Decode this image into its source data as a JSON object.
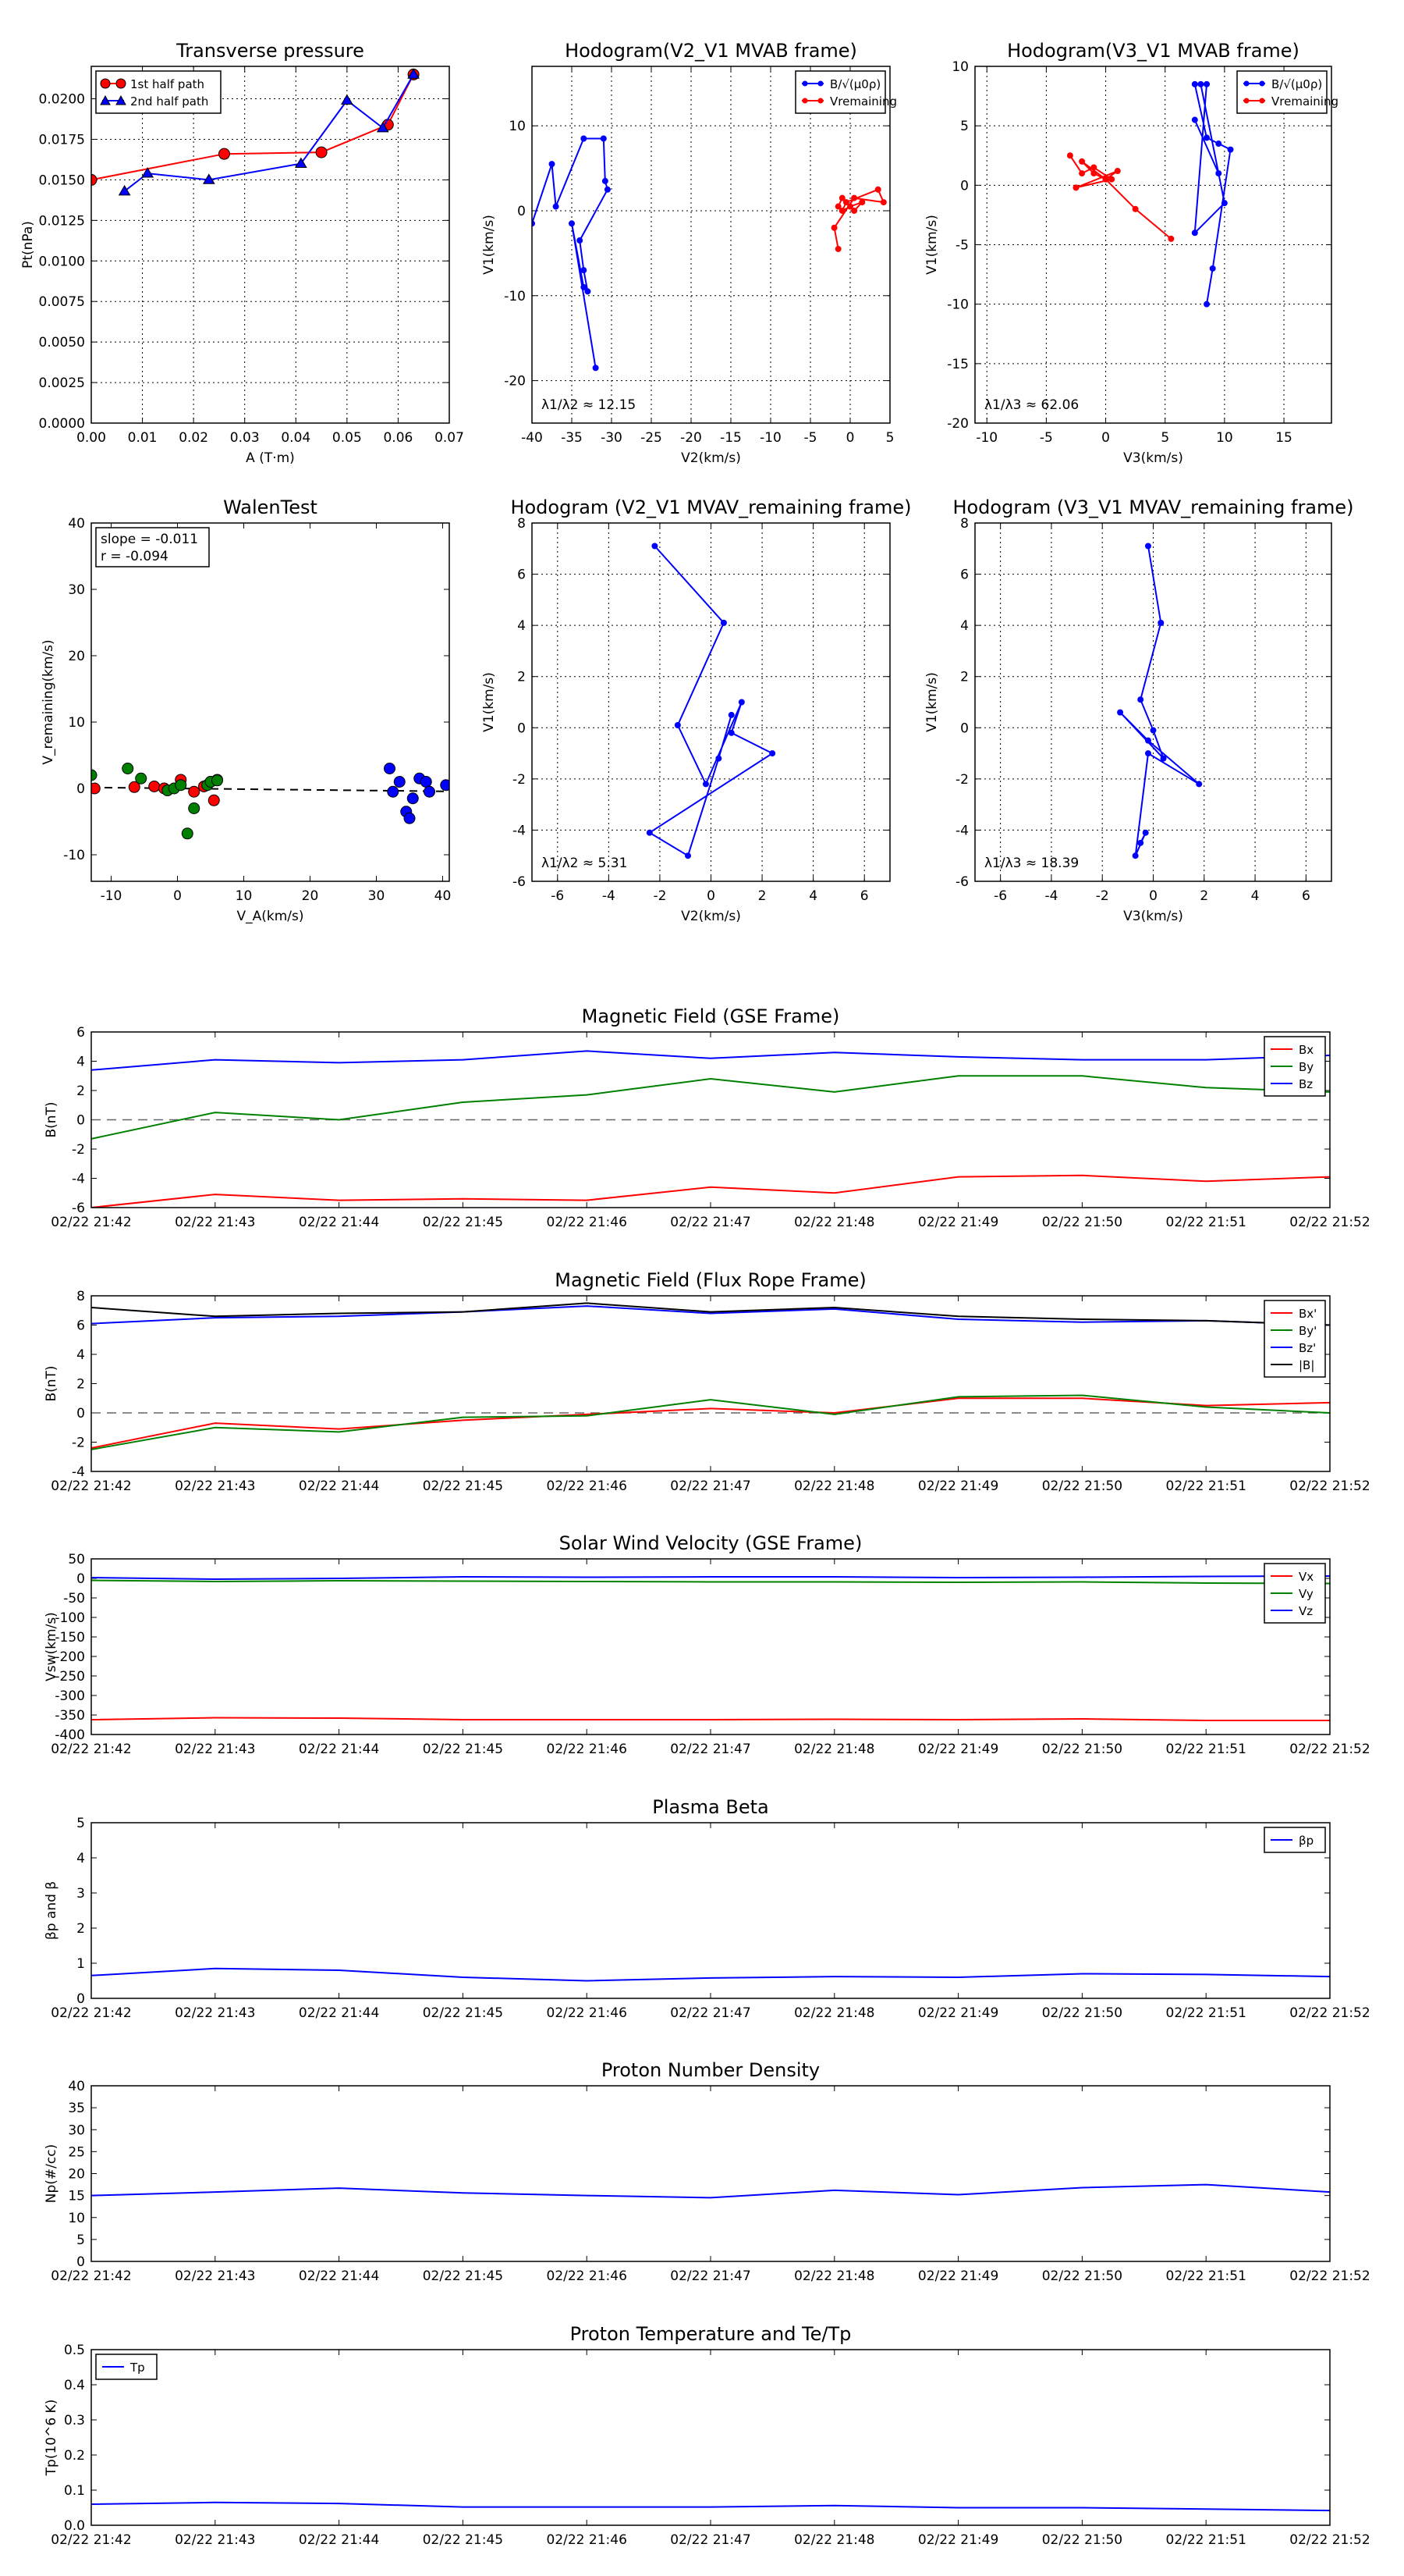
{
  "times": [
    "02/22 21:42",
    "02/22 21:43",
    "02/22 21:44",
    "02/22 21:45",
    "02/22 21:46",
    "02/22 21:47",
    "02/22 21:48",
    "02/22 21:49",
    "02/22 21:50",
    "02/22 21:51",
    "02/22 21:52"
  ],
  "chart_data": [
    {
      "id": "transverse-pressure",
      "type": "line",
      "title": "Transverse pressure",
      "xlabel": "A (T·m)",
      "ylabel": "Pt(nPa)",
      "xlim": [
        0,
        0.07
      ],
      "ylim": [
        0,
        0.022
      ],
      "xticks": [
        "0.00",
        "0.01",
        "0.02",
        "0.03",
        "0.04",
        "0.05",
        "0.06",
        "0.07"
      ],
      "yticks": [
        "0.0000",
        "0.0025",
        "0.0050",
        "0.0075",
        "0.0100",
        "0.0125",
        "0.0150",
        "0.0175",
        "0.0200"
      ],
      "legend": "top-left",
      "grid": true,
      "series": [
        {
          "name": "1st half path",
          "color": "#ff0000",
          "marker": "circle",
          "x": [
            0.0,
            0.026,
            0.045,
            0.058,
            0.063
          ],
          "y": [
            0.015,
            0.0166,
            0.0167,
            0.0184,
            0.0215
          ]
        },
        {
          "name": "2nd half path",
          "color": "#0000ff",
          "marker": "triangle",
          "x": [
            0.0065,
            0.011,
            0.023,
            0.041,
            0.05,
            0.057,
            0.063
          ],
          "y": [
            0.0143,
            0.0154,
            0.015,
            0.016,
            0.0199,
            0.0182,
            0.0215
          ]
        }
      ]
    },
    {
      "id": "hodogram-v2v1-mvab",
      "type": "line",
      "title": "Hodogram(V2_V1 MVAB frame)",
      "xlabel": "V2(km/s)",
      "ylabel": "V1(km/s)",
      "xlim": [
        -40,
        5
      ],
      "ylim": [
        -25,
        17
      ],
      "xticks": [
        "-40",
        "-35",
        "-30",
        "-25",
        "-20",
        "-15",
        "-10",
        "-5",
        "0",
        "5"
      ],
      "yticks": [
        "-20",
        "-10",
        "0",
        "10"
      ],
      "annotation": "λ1/λ2 ≈ 12.15",
      "legend": "top-right",
      "grid": true,
      "series": [
        {
          "name": "B/√(μ0ρ)",
          "color": "#0000ff",
          "x": [
            -40,
            -37.5,
            -37,
            -33.5,
            -31,
            -30.8,
            -30.5,
            -34,
            -33.5,
            -33,
            -33.5,
            -35,
            -32
          ],
          "y": [
            -1.5,
            5.5,
            0.5,
            8.5,
            8.5,
            3.5,
            2.5,
            -3.5,
            -7,
            -9.5,
            -9,
            -1.5,
            -18.5
          ]
        },
        {
          "name": "Vremaining",
          "color": "#ff0000",
          "x": [
            -1.5,
            -1.0,
            0.5,
            1.5,
            0.0,
            -1.0,
            -0.5,
            3.5,
            4.2,
            0.5,
            -2.0,
            -1.5
          ],
          "y": [
            0.5,
            1.5,
            0.0,
            1.0,
            0.5,
            0.0,
            1.0,
            2.5,
            1.0,
            1.5,
            -2.0,
            -4.5
          ]
        }
      ]
    },
    {
      "id": "hodogram-v3v1-mvab",
      "type": "line",
      "title": "Hodogram(V3_V1 MVAB frame)",
      "xlabel": "V3(km/s)",
      "ylabel": "V1(km/s)",
      "xlim": [
        -11,
        19
      ],
      "ylim": [
        -20,
        10
      ],
      "xticks": [
        "-10",
        "-5",
        "0",
        "5",
        "10",
        "15"
      ],
      "yticks": [
        "-20",
        "-15",
        "-10",
        "-5",
        "0",
        "5",
        "10"
      ],
      "annotation": "λ1/λ3 ≈ 62.06",
      "legend": "top-right",
      "grid": true,
      "series": [
        {
          "name": "B/√(μ0ρ)",
          "color": "#0000ff",
          "x": [
            7.5,
            9.5,
            8.0,
            10.0,
            7.5,
            8.5,
            7.5,
            8.5,
            9.5,
            10.5,
            9.0,
            8.5
          ],
          "y": [
            5.5,
            1.0,
            8.5,
            -1.5,
            -4.0,
            8.5,
            8.5,
            4.0,
            3.5,
            3.0,
            -7.0,
            -10.0
          ]
        },
        {
          "name": "Vremaining",
          "color": "#ff0000",
          "x": [
            -3.0,
            -2.0,
            -1.0,
            0.5,
            -2.5,
            1.0,
            0.0,
            -1.0,
            -2.0,
            0.0,
            2.5,
            5.5
          ],
          "y": [
            2.5,
            1.0,
            1.5,
            0.5,
            -0.2,
            1.2,
            0.5,
            1.0,
            2.0,
            0.5,
            -2.0,
            -4.5
          ]
        }
      ]
    },
    {
      "id": "walen-test",
      "type": "scatter",
      "title": "WalenTest",
      "xlabel": "V_A(km/s)",
      "ylabel": "V_remaining(km/s)",
      "xlim": [
        -13,
        41
      ],
      "ylim": [
        -14,
        40
      ],
      "xticks": [
        "-10",
        "0",
        "10",
        "20",
        "30",
        "40"
      ],
      "yticks": [
        "-10",
        "0",
        "10",
        "20",
        "30",
        "40"
      ],
      "annotation_lines": [
        "slope = -0.011",
        "r = -0.094"
      ],
      "fit": {
        "x": [
          -13,
          41
        ],
        "y": [
          0.14,
          -0.45
        ]
      },
      "series": [
        {
          "color": "#ff0000",
          "x": [
            -12.5,
            -6.5,
            -3.5,
            -2,
            0.5,
            2.5,
            4,
            5,
            5.5,
            6
          ],
          "y": [
            0,
            0.2,
            0.3,
            0,
            1.3,
            -0.5,
            0.3,
            1,
            -1.8,
            1.3
          ]
        },
        {
          "color": "#008000",
          "x": [
            -13,
            -7.5,
            -5.5,
            -1.5,
            -0.5,
            0.5,
            1.5,
            2.5,
            4.5,
            5,
            6
          ],
          "y": [
            2,
            3,
            1.5,
            -0.3,
            0,
            0.5,
            -6.8,
            -3,
            0.5,
            1,
            1.2
          ]
        },
        {
          "color": "#0000ff",
          "x": [
            32,
            32.5,
            33.5,
            34.5,
            35,
            35.5,
            36.5,
            37.5,
            38,
            40.5
          ],
          "y": [
            3,
            -0.5,
            1,
            -3.5,
            -4.5,
            -1.5,
            1.5,
            1,
            -0.5,
            0.5
          ]
        }
      ]
    },
    {
      "id": "hodogram-v2v1-mvav",
      "type": "line",
      "title": "Hodogram (V2_V1 MVAV_remaining frame)",
      "xlabel": "V2(km/s)",
      "ylabel": "V1(km/s)",
      "xlim": [
        -7,
        7
      ],
      "ylim": [
        -6,
        8
      ],
      "xticks": [
        "-6",
        "-4",
        "-2",
        "0",
        "2",
        "4",
        "6"
      ],
      "yticks": [
        "-6",
        "-4",
        "-2",
        "0",
        "2",
        "4",
        "6",
        "8"
      ],
      "annotation": "λ1/λ2 ≈ 5.31",
      "grid": true,
      "series": [
        {
          "color": "#0000ff",
          "x": [
            -2.2,
            0.5,
            -1.3,
            -0.2,
            1.2,
            0.8,
            2.4,
            -2.4,
            -0.9,
            0.3,
            0.8
          ],
          "y": [
            7.1,
            4.1,
            0.1,
            -2.2,
            1.0,
            -0.2,
            -1.0,
            -4.1,
            -5.0,
            -1.2,
            0.5
          ]
        }
      ]
    },
    {
      "id": "hodogram-v3v1-mvav",
      "type": "line",
      "title": "Hodogram (V3_V1 MVAV_remaining frame)",
      "xlabel": "V3(km/s)",
      "ylabel": "V1(km/s)",
      "xlim": [
        -7,
        7
      ],
      "ylim": [
        -6,
        8
      ],
      "xticks": [
        "-6",
        "-4",
        "-2",
        "0",
        "2",
        "4",
        "6"
      ],
      "yticks": [
        "-6",
        "-4",
        "-2",
        "0",
        "2",
        "4",
        "6",
        "8"
      ],
      "annotation": "λ1/λ3 ≈ 18.39",
      "grid": true,
      "series": [
        {
          "color": "#0000ff",
          "x": [
            -0.2,
            0.3,
            -0.5,
            0.0,
            0.4,
            -1.3,
            -0.2,
            1.8,
            -0.2,
            -0.7,
            -0.3,
            -0.5
          ],
          "y": [
            7.1,
            4.1,
            1.1,
            -0.1,
            -1.2,
            0.6,
            -0.5,
            -2.2,
            -1.0,
            -5.0,
            -4.1,
            -4.5
          ]
        }
      ]
    },
    {
      "id": "magnetic-field-gse",
      "type": "line",
      "title": "Magnetic Field (GSE Frame)",
      "ylabel": "B(nT)",
      "ylim": [
        -6,
        6
      ],
      "yticks": [
        "-6",
        "-4",
        "-2",
        "0",
        "2",
        "4",
        "6"
      ],
      "zero_line": true,
      "legend": "top-right",
      "series": [
        {
          "name": "Bx",
          "color": "#ff0000",
          "y": [
            -6.0,
            -5.1,
            -5.5,
            -5.4,
            -5.5,
            -4.6,
            -5.0,
            -3.9,
            -3.8,
            -4.2,
            -3.9
          ]
        },
        {
          "name": "By",
          "color": "#008000",
          "y": [
            -1.3,
            0.5,
            0.0,
            1.2,
            1.7,
            2.8,
            1.9,
            3.0,
            3.0,
            2.2,
            1.9
          ]
        },
        {
          "name": "Bz",
          "color": "#0000ff",
          "y": [
            3.4,
            4.1,
            3.9,
            4.1,
            4.7,
            4.2,
            4.6,
            4.3,
            4.1,
            4.1,
            4.4
          ]
        }
      ]
    },
    {
      "id": "magnetic-field-flux-rope",
      "type": "line",
      "title": "Magnetic Field (Flux Rope Frame)",
      "ylabel": "B(nT)",
      "ylim": [
        -4,
        8
      ],
      "yticks": [
        "-4",
        "-2",
        "0",
        "2",
        "4",
        "6",
        "8"
      ],
      "zero_line": true,
      "legend": "top-right",
      "series": [
        {
          "name": "Bx'",
          "color": "#ff0000",
          "y": [
            -2.4,
            -0.7,
            -1.1,
            -0.5,
            -0.1,
            0.3,
            0.0,
            1.0,
            1.0,
            0.5,
            0.7
          ]
        },
        {
          "name": "By'",
          "color": "#008000",
          "y": [
            -2.5,
            -1.0,
            -1.3,
            -0.3,
            -0.2,
            0.9,
            -0.1,
            1.1,
            1.2,
            0.4,
            0.0
          ]
        },
        {
          "name": "Bz'",
          "color": "#0000ff",
          "y": [
            6.1,
            6.5,
            6.6,
            6.9,
            7.3,
            6.8,
            7.1,
            6.4,
            6.2,
            6.3,
            6.0
          ]
        },
        {
          "name": "|B|",
          "color": "#000000",
          "y": [
            7.2,
            6.6,
            6.8,
            6.9,
            7.5,
            6.9,
            7.2,
            6.6,
            6.4,
            6.3,
            6.0
          ]
        }
      ]
    },
    {
      "id": "solar-wind-velocity",
      "type": "line",
      "title": "Solar Wind Velocity (GSE Frame)",
      "ylabel": "Vsw(km/s)",
      "ylim": [
        -400,
        50
      ],
      "yticks": [
        "-400",
        "-350",
        "-300",
        "-250",
        "-200",
        "-150",
        "-100",
        "-50",
        "0",
        "50"
      ],
      "legend": "top-right",
      "series": [
        {
          "name": "Vx",
          "color": "#ff0000",
          "y": [
            -362,
            -357,
            -358,
            -362,
            -362,
            -362,
            -361,
            -362,
            -360,
            -364,
            -364
          ]
        },
        {
          "name": "Vy",
          "color": "#008000",
          "y": [
            -5,
            -8,
            -6,
            -7,
            -8,
            -9,
            -9,
            -10,
            -9,
            -12,
            -13
          ]
        },
        {
          "name": "Vz",
          "color": "#0000ff",
          "y": [
            2,
            -2,
            0,
            4,
            3,
            4,
            4,
            2,
            3,
            5,
            6
          ]
        }
      ]
    },
    {
      "id": "plasma-beta",
      "type": "line",
      "title": "Plasma Beta",
      "ylabel": "βp and β",
      "ylim": [
        0,
        5
      ],
      "yticks": [
        "0",
        "1",
        "2",
        "3",
        "4",
        "5"
      ],
      "legend": "top-right",
      "series": [
        {
          "name": "βp",
          "color": "#0000ff",
          "y": [
            0.65,
            0.85,
            0.8,
            0.6,
            0.5,
            0.58,
            0.62,
            0.6,
            0.7,
            0.68,
            0.62
          ]
        }
      ]
    },
    {
      "id": "proton-density",
      "type": "line",
      "title": "Proton Number Density",
      "ylabel": "Np(#/cc)",
      "ylim": [
        0,
        40
      ],
      "yticks": [
        "0",
        "5",
        "10",
        "15",
        "20",
        "25",
        "30",
        "35",
        "40"
      ],
      "series": [
        {
          "color": "#0000ff",
          "y": [
            15.0,
            15.8,
            16.7,
            15.6,
            15.0,
            14.5,
            16.2,
            15.2,
            16.8,
            17.5,
            15.8
          ]
        }
      ]
    },
    {
      "id": "proton-temperature",
      "type": "line",
      "title": "Proton Temperature and Te/Tp",
      "ylabel": "Tp(10^6 K)",
      "ylim": [
        0,
        0.5
      ],
      "yticks": [
        "0.0",
        "0.1",
        "0.2",
        "0.3",
        "0.4",
        "0.5"
      ],
      "legend": "top-left",
      "series": [
        {
          "name": "Tp",
          "color": "#0000ff",
          "y": [
            0.06,
            0.065,
            0.062,
            0.052,
            0.052,
            0.052,
            0.056,
            0.05,
            0.05,
            0.046,
            0.042
          ]
        }
      ]
    }
  ]
}
